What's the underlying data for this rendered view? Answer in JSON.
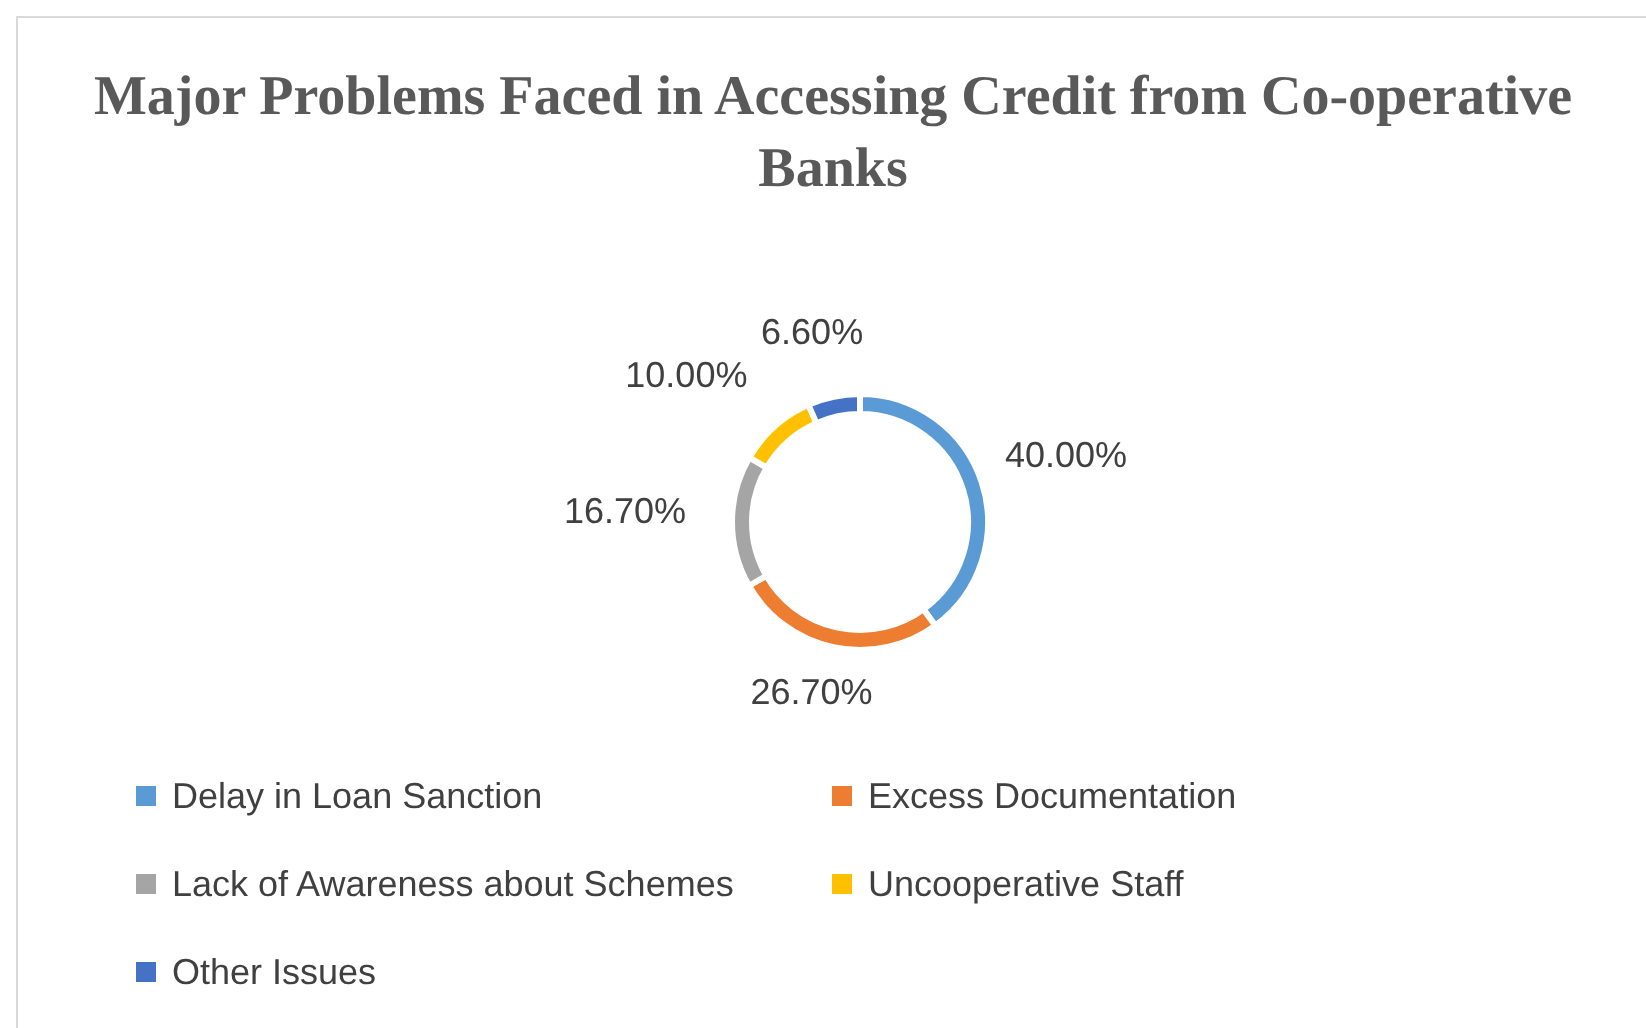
{
  "chart_data": {
    "type": "donut",
    "title": "Major Problems Faced in Accessing Credit from Co-operative Banks",
    "categories": [
      "Delay in Loan Sanction",
      "Excess Documentation",
      "Lack of Awareness about Schemes",
      "Uncooperative Staff",
      "Other Issues"
    ],
    "values": [
      40,
      26.7,
      16.7,
      10,
      6.6
    ],
    "value_labels": [
      "40.00%",
      "26.70%",
      "16.70%",
      "10.00%",
      "6.60%"
    ],
    "colors": [
      "#5b9bd5",
      "#ed7d31",
      "#a5a5a5",
      "#ffc000",
      "#4472c4"
    ],
    "legend": "bottom"
  }
}
